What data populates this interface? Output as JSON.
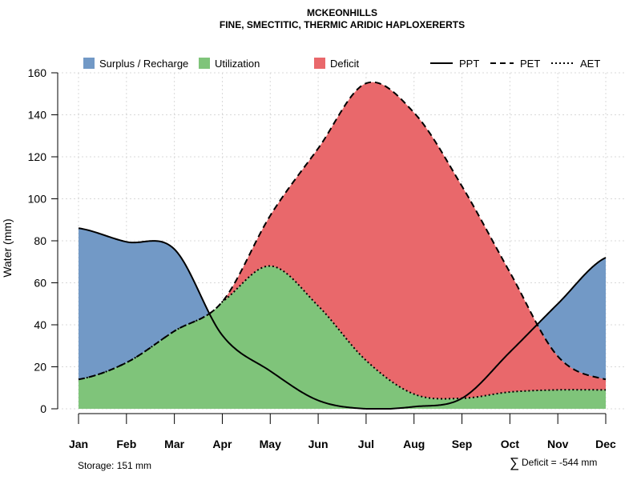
{
  "chart_data": {
    "type": "area",
    "title": "MCKEONHILLS",
    "subtitle": "FINE, SMECTITIC, THERMIC ARIDIC HAPLOXERERTS",
    "ylabel": "Water (mm)",
    "xlabel": "",
    "ylim": [
      0,
      160
    ],
    "yticks": [
      "0",
      "20",
      "40",
      "60",
      "80",
      "100",
      "120",
      "140",
      "160"
    ],
    "categories": [
      "Jan",
      "Feb",
      "Mar",
      "Apr",
      "May",
      "Jun",
      "Jul",
      "Aug",
      "Sep",
      "Oct",
      "Nov",
      "Dec"
    ],
    "series": [
      {
        "name": "PPT",
        "line_style": "solid",
        "values": [
          86,
          79.5,
          76,
          35,
          18,
          4,
          0,
          1,
          5,
          27,
          50,
          72
        ]
      },
      {
        "name": "PET",
        "line_style": "dashed",
        "values": [
          14,
          22,
          37,
          51,
          92,
          124,
          155,
          141,
          106,
          65,
          25,
          14
        ]
      },
      {
        "name": "AET",
        "line_style": "dotted",
        "values": [
          14,
          22,
          37,
          51,
          68,
          49,
          23,
          7,
          5,
          8,
          9,
          9
        ]
      }
    ],
    "areas": [
      {
        "name": "Surplus / Recharge",
        "color": "#7299c6"
      },
      {
        "name": "Utilization",
        "color": "#7fc47a"
      },
      {
        "name": "Deficit",
        "color": "#e9686b"
      }
    ],
    "grid": true,
    "legend_position": "top"
  },
  "labels": {
    "ppt": "PPT",
    "pet": "PET",
    "aet": "AET",
    "storage": "Storage: 151 mm",
    "deficit_symbol": "∑",
    "deficit": "Deficit = -544 mm"
  }
}
